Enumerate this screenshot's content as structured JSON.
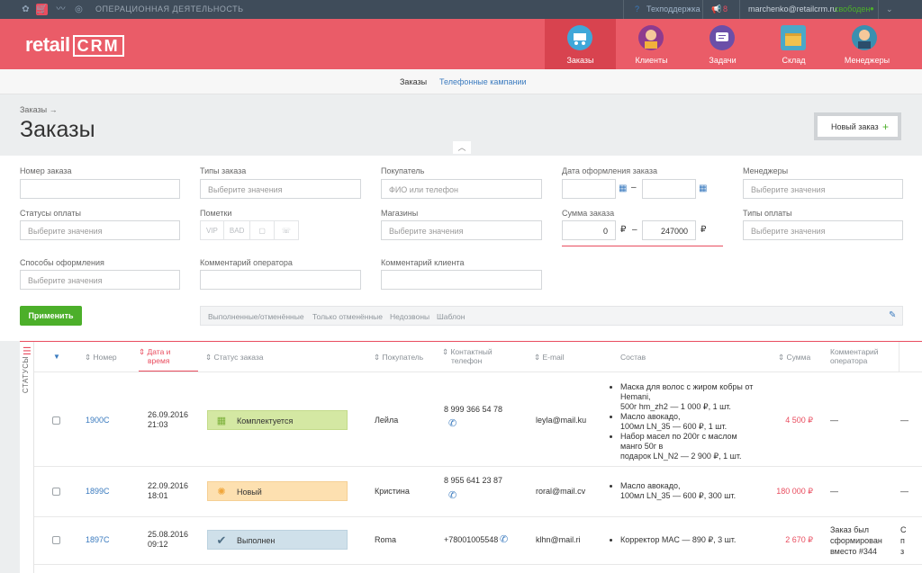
{
  "topbar": {
    "section_label": "ОПЕРАЦИОННАЯ ДЕЯТЕЛЬНОСТЬ",
    "support": "Техподдержка",
    "notifications": "8",
    "email": "marchenko@retailcrm.ru",
    "status": "свободен",
    "status_color": "#4caf2a"
  },
  "brand": {
    "logo_text": "retail",
    "logo_crm": "CRM",
    "accent": "#e94d5f",
    "header_bg": "#ea5c68"
  },
  "nav": {
    "items": [
      {
        "label": "Заказы",
        "icon": "cart-icon",
        "active": true
      },
      {
        "label": "Клиенты",
        "icon": "client-avatar-icon"
      },
      {
        "label": "Задачи",
        "icon": "tasks-chat-icon"
      },
      {
        "label": "Склад",
        "icon": "warehouse-box-icon"
      },
      {
        "label": "Менеджеры",
        "icon": "manager-avatar-icon"
      }
    ]
  },
  "subnav": {
    "tab_orders": "Заказы",
    "tab_campaigns": "Телефонные кампании"
  },
  "page": {
    "breadcrumb": "Заказы →",
    "title": "Заказы",
    "new_order": "Новый заказ",
    "new_order_plus": "+"
  },
  "filters": {
    "order_number": {
      "label": "Номер заказа",
      "value": ""
    },
    "order_types": {
      "label": "Типы заказа",
      "placeholder": "Выберите значения"
    },
    "customer": {
      "label": "Покупатель",
      "placeholder": "ФИО или телефон"
    },
    "order_date": {
      "label": "Дата оформления заказа",
      "dash": "–"
    },
    "managers": {
      "label": "Менеджеры",
      "placeholder": "Выберите значения"
    },
    "payment_statuses": {
      "label": "Статусы оплаты",
      "placeholder": "Выберите значения"
    },
    "marks": {
      "label": "Пометки",
      "items": [
        "VIP",
        "BAD",
        "▢",
        "☏"
      ]
    },
    "shops": {
      "label": "Магазины",
      "placeholder": "Выберите значения"
    },
    "order_sum": {
      "label": "Сумма заказа",
      "from": "0",
      "to": "247000",
      "currency": "₽",
      "dash": "–"
    },
    "payment_types": {
      "label": "Типы оплаты",
      "placeholder": "Выберите значения"
    },
    "checkout_methods": {
      "label": "Способы оформления",
      "placeholder": "Выберите значения"
    },
    "operator_comment": {
      "label": "Комментарий оператора",
      "value": ""
    },
    "customer_comment": {
      "label": "Комментарий клиента",
      "value": ""
    },
    "apply": "Применить",
    "presets": [
      "Выполненные/отменённые",
      "Только отменённые",
      "Недозвоны",
      "Шаблон"
    ]
  },
  "table": {
    "side_label": "СТАТУСЫ",
    "headers": {
      "number": "Номер",
      "date_1": "Дата и",
      "date_2": "время",
      "status": "Статус заказа",
      "customer": "Покупатель",
      "phone_1": "Контактный",
      "phone_2": "телефон",
      "email": "E-mail",
      "items": "Состав",
      "sum": "Сумма",
      "comment_1": "Комментарий",
      "comment_2": "оператора"
    },
    "rows": [
      {
        "number": "1900C",
        "date": "26.09.2016",
        "time": "21:03",
        "status": "Комплектуется",
        "status_color": "#d4e8a3",
        "customer": "Лейла",
        "phone": "8 999 366 54 78",
        "email": "leyla@mail.ku",
        "items": [
          [
            "Маска для волос с жиром кобры от",
            "Hemani,",
            "500г hm_zh2 — 1 000 ₽, 1 шт."
          ],
          [
            "Масло авокадо,",
            "100мл LN_35 — 600 ₽, 1 шт."
          ],
          [
            "Набор масел по 200г с маслом",
            "манго 50г в",
            "подарок LN_N2 — 2 900 ₽, 1 шт."
          ]
        ],
        "sum": "4 500 ₽",
        "comment": "—",
        "last": "—"
      },
      {
        "number": "1899C",
        "date": "22.09.2016",
        "time": "18:01",
        "status": "Новый",
        "status_color": "#fde0b0",
        "customer": "Кристина",
        "phone": "8 955 641 23 87",
        "email": "roral@mail.cv",
        "items": [
          [
            "Масло авокадо,",
            "100мл LN_35 — 600 ₽, 300 шт."
          ]
        ],
        "sum": "180 000 ₽",
        "comment": "—",
        "last": "—"
      },
      {
        "number": "1897C",
        "date": "25.08.2016",
        "time": "09:12",
        "status": "Выполнен",
        "status_color": "#cfe0ea",
        "customer": "Roma",
        "phone": "+78001005548",
        "email": "klhn@mail.ri",
        "items": [
          [
            "Корректор MAC — 890 ₽, 3 шт."
          ]
        ],
        "sum": "2 670 ₽",
        "comment_lines": [
          "Заказ был",
          "сформирован",
          "вместо #344"
        ],
        "last_lines": [
          "С",
          "п",
          "з"
        ]
      }
    ]
  }
}
